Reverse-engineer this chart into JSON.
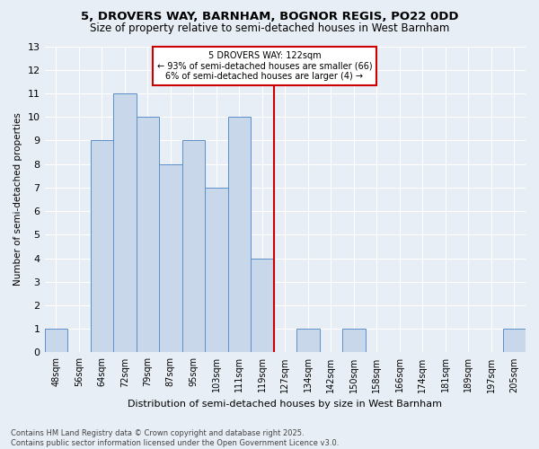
{
  "title1": "5, DROVERS WAY, BARNHAM, BOGNOR REGIS, PO22 0DD",
  "title2": "Size of property relative to semi-detached houses in West Barnham",
  "xlabel": "Distribution of semi-detached houses by size in West Barnham",
  "ylabel": "Number of semi-detached properties",
  "categories": [
    "48sqm",
    "56sqm",
    "64sqm",
    "72sqm",
    "79sqm",
    "87sqm",
    "95sqm",
    "103sqm",
    "111sqm",
    "119sqm",
    "127sqm",
    "134sqm",
    "142sqm",
    "150sqm",
    "158sqm",
    "166sqm",
    "174sqm",
    "181sqm",
    "189sqm",
    "197sqm",
    "205sqm"
  ],
  "values": [
    1,
    0,
    9,
    11,
    10,
    8,
    9,
    7,
    10,
    4,
    0,
    1,
    0,
    1,
    0,
    0,
    0,
    0,
    0,
    0,
    1
  ],
  "bar_color": "#c8d8ea",
  "bar_edge_color": "#5b8fc9",
  "highlight_index": 9,
  "annotation_title": "5 DROVERS WAY: 122sqm",
  "annotation_line1": "← 93% of semi-detached houses are smaller (66)",
  "annotation_line2": "6% of semi-detached houses are larger (4) →",
  "ylim": [
    0,
    13
  ],
  "yticks": [
    0,
    1,
    2,
    3,
    4,
    5,
    6,
    7,
    8,
    9,
    10,
    11,
    12,
    13
  ],
  "footer1": "Contains HM Land Registry data © Crown copyright and database right 2025.",
  "footer2": "Contains public sector information licensed under the Open Government Licence v3.0.",
  "background_color": "#e8eef5",
  "grid_color": "#ffffff"
}
